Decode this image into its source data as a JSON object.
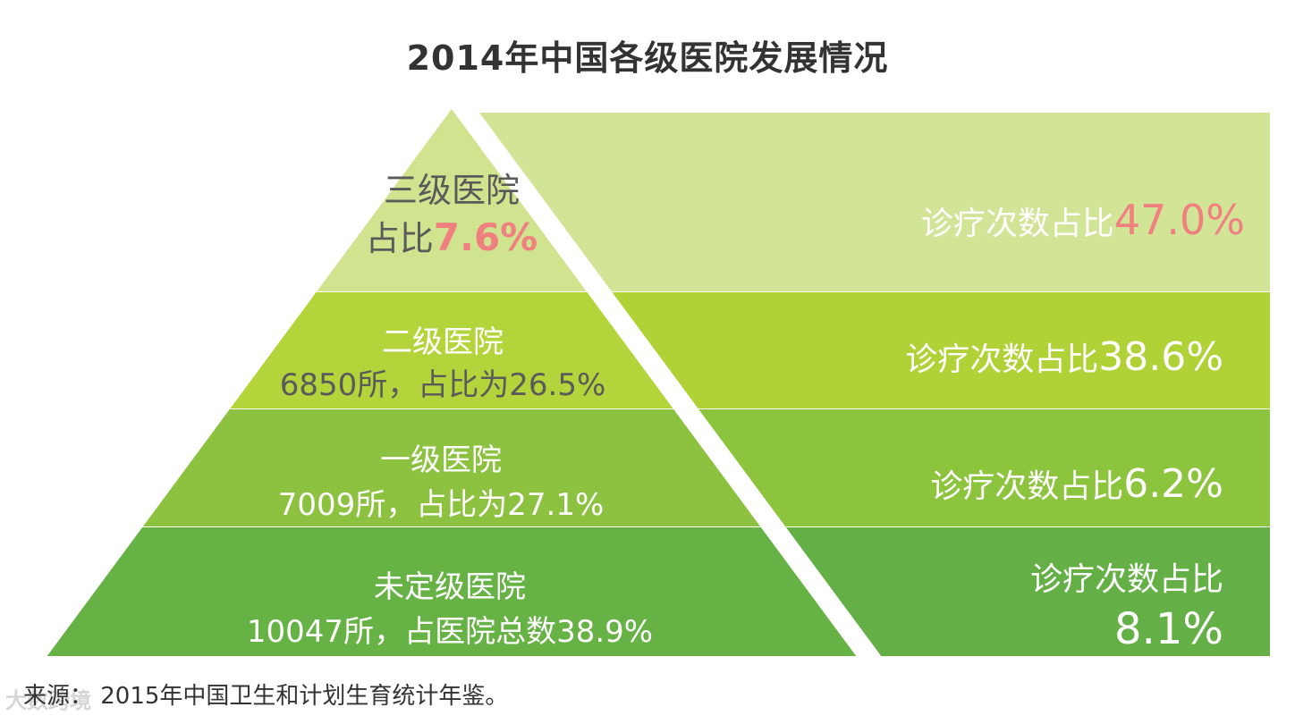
{
  "chart_data": {
    "type": "pyramid",
    "title": "2014年中国各级医院发展情况",
    "source": "来源：  2015年中国卫生和计划生育统计年鉴。",
    "watermark": "大数跨境",
    "tiers": [
      {
        "name": "三级医院",
        "detail_prefix": "占比",
        "detail_value": "7.6%",
        "share_of_hospitals": 7.6,
        "visit_label": "诊疗次数占比",
        "visit_value": "47.0%",
        "visit_share": 47.0,
        "left_color": "#d0e38f",
        "right_color": "#d2e496"
      },
      {
        "name": "二级医院",
        "detail": "6850所，占比为26.5%",
        "count": 6850,
        "share_of_hospitals": 26.5,
        "visit_label": "诊疗次数占比",
        "visit_value": "38.6%",
        "visit_share": 38.6,
        "left_color": "#b4d43b",
        "right_color": "#b0d236"
      },
      {
        "name": "一级医院",
        "detail": "7009所，占比为27.1%",
        "count": 7009,
        "share_of_hospitals": 27.1,
        "visit_label": "诊疗次数占比",
        "visit_value": "6.2%",
        "visit_share": 6.2,
        "left_color": "#8cc240",
        "right_color": "#8cc43e"
      },
      {
        "name": "未定级医院",
        "detail": "10047所，占医院总数38.9%",
        "count": 10047,
        "share_of_hospitals": 38.9,
        "visit_label": "诊疗次数占比",
        "visit_value": "8.1%",
        "visit_share": 8.1,
        "left_color": "#66b244",
        "right_color": "#64b046"
      }
    ],
    "colors": {
      "highlight": "#f08080",
      "left_text": "#5a5a5a",
      "light_text": "#ffffff"
    }
  }
}
